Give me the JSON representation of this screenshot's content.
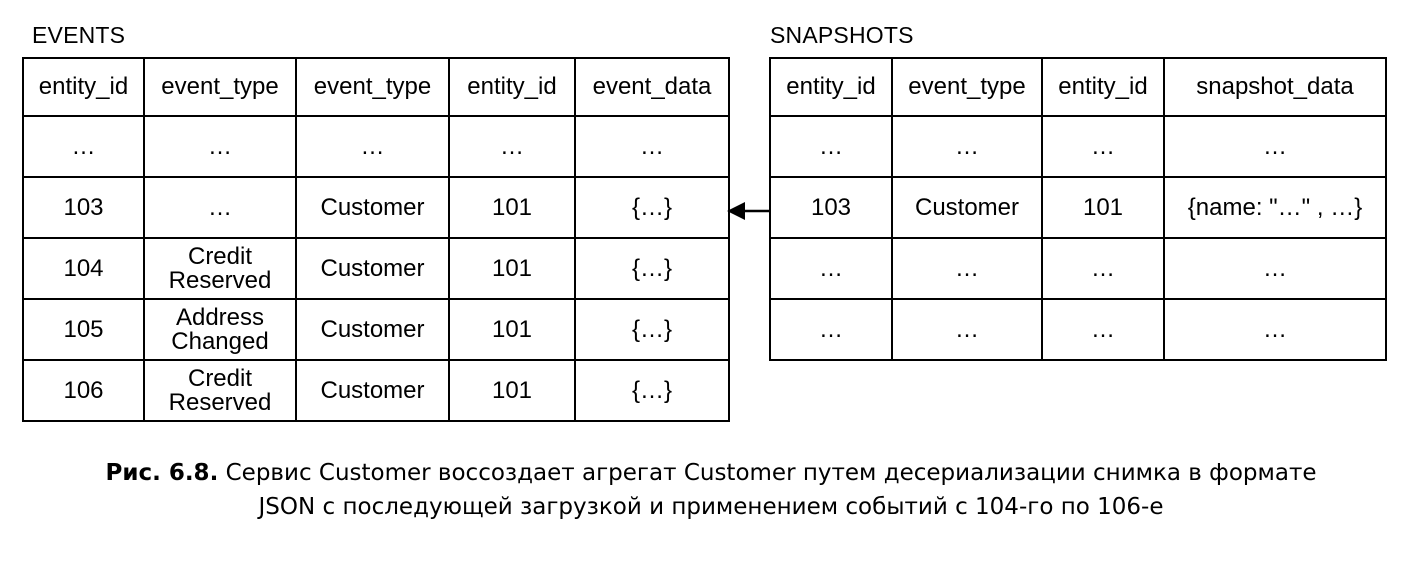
{
  "events": {
    "title": "EVENTS",
    "headers": [
      "entity_id",
      "event_type",
      "event_type",
      "entity_id",
      "event_data"
    ],
    "rows": [
      [
        "…",
        "…",
        "…",
        "…",
        "…"
      ],
      [
        "103",
        "…",
        "Customer",
        "101",
        "{…}"
      ],
      [
        "104",
        "Credit\nReserved",
        "Customer",
        "101",
        "{…}"
      ],
      [
        "105",
        "Address\nChanged",
        "Customer",
        "101",
        "{…}"
      ],
      [
        "106",
        "Credit\nReserved",
        "Customer",
        "101",
        "{…}"
      ]
    ]
  },
  "snapshots": {
    "title": "SNAPSHOTS",
    "headers": [
      "entity_id",
      "event_type",
      "entity_id",
      "snapshot_data"
    ],
    "rows": [
      [
        "…",
        "…",
        "…",
        "…"
      ],
      [
        "103",
        "Customer",
        "101",
        "{name: \"…\" , …}"
      ],
      [
        "…",
        "…",
        "…",
        "…"
      ],
      [
        "…",
        "…",
        "…",
        "…"
      ]
    ]
  },
  "caption": {
    "label": "Рис. 6.8.",
    "line1": "Сервис Customer воссоздает агрегат Customer путем десериализации снимка в формате",
    "line2": "JSON с последующей загрузкой и применением событий с 104-го по 106-е"
  }
}
